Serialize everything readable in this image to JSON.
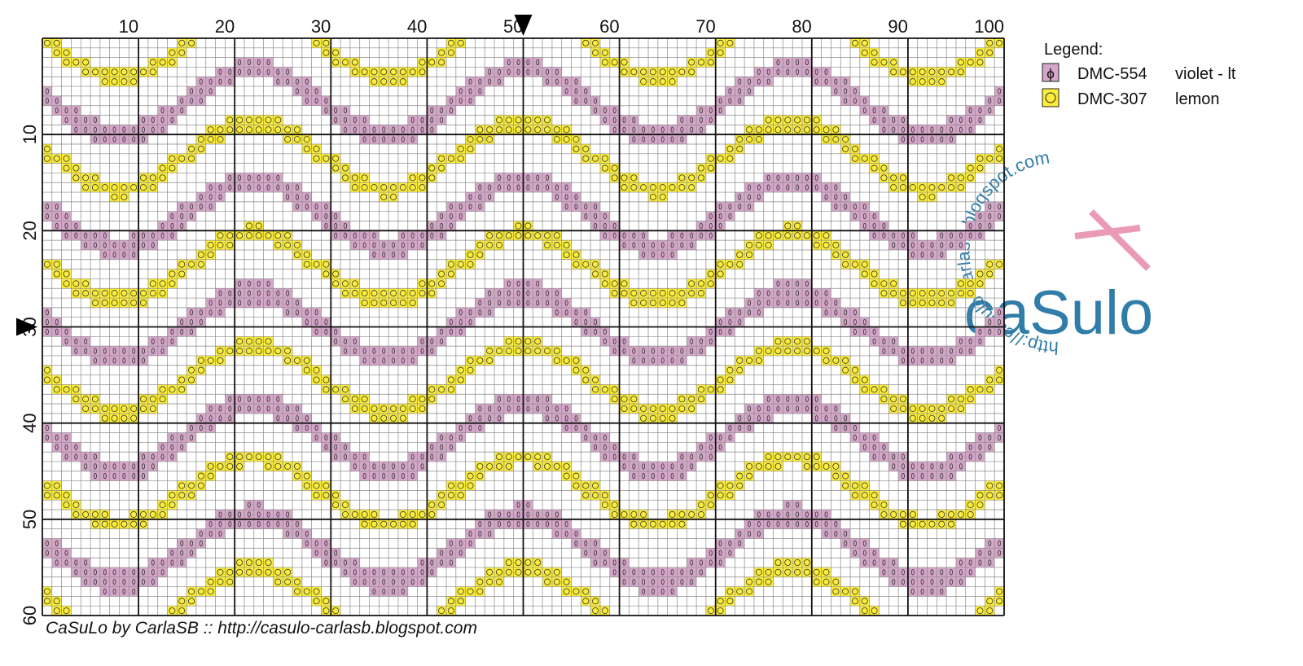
{
  "top_axis": {
    "labels": [
      10,
      20,
      30,
      40,
      50,
      60,
      70,
      80,
      90,
      100
    ]
  },
  "left_axis": {
    "labels": [
      10,
      20,
      30,
      40,
      50,
      60
    ]
  },
  "legend": {
    "title": "Legend:",
    "items": [
      {
        "code": "DMC-554",
        "name": "violet - lt",
        "color": "#d4a6c8",
        "symbol": "ϕ"
      },
      {
        "code": "DMC-307",
        "name": "lemon",
        "color": "#fbed3a"
      }
    ]
  },
  "footer": "CaSuLo by CarlaSB :: http://casulo-carlasb.blogspot.com",
  "watermark": {
    "url": "http://casulo-carlasb.blogspot.com",
    "logo": "caSulo"
  }
}
